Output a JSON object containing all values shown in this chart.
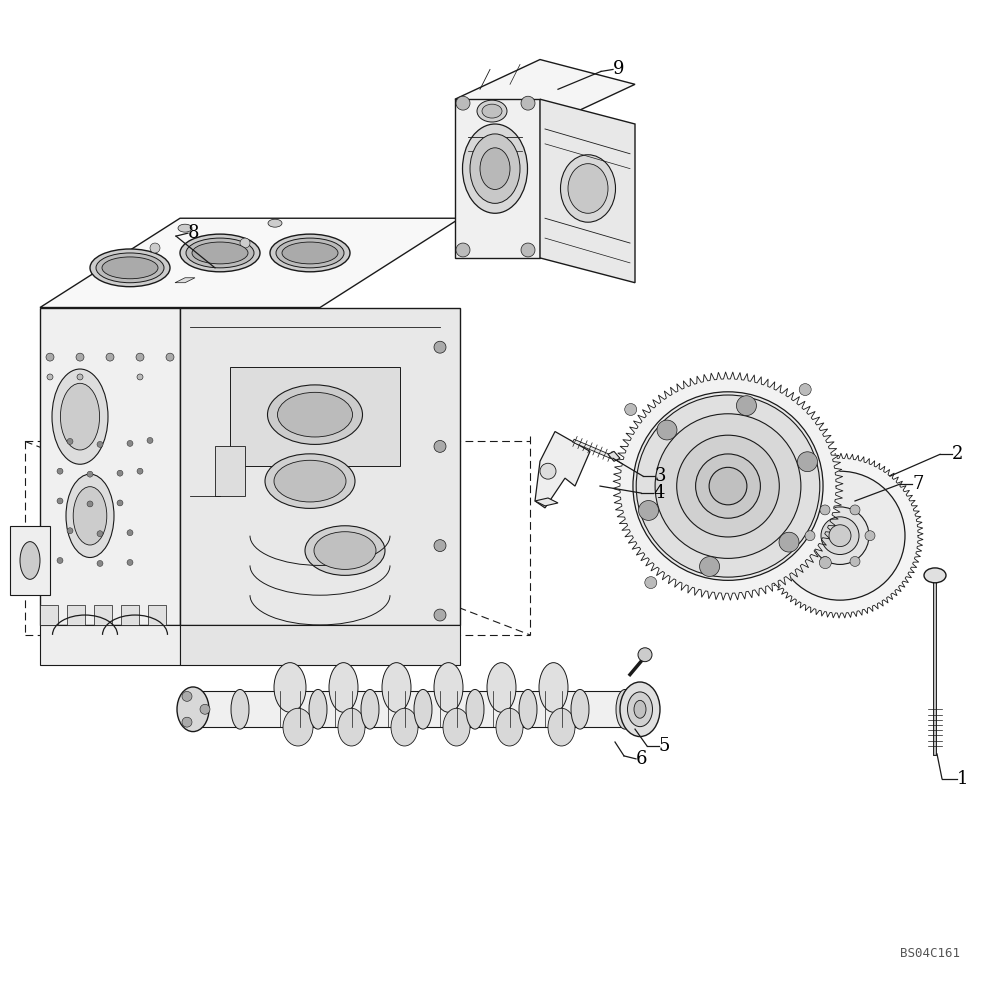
{
  "bg_color": "#ffffff",
  "lc": "#1a1a1a",
  "fig_width": 10.0,
  "fig_height": 9.92,
  "dpi": 100,
  "watermark": "BS04C161",
  "callouts": {
    "1": [
      0.955,
      0.21,
      0.93,
      0.235
    ],
    "2": [
      0.948,
      0.535,
      0.895,
      0.51
    ],
    "3": [
      0.65,
      0.505,
      0.618,
      0.51
    ],
    "4": [
      0.648,
      0.49,
      0.608,
      0.49
    ],
    "5": [
      0.66,
      0.235,
      0.633,
      0.248
    ],
    "6": [
      0.635,
      0.228,
      0.605,
      0.238
    ],
    "7": [
      0.91,
      0.505,
      0.862,
      0.508
    ],
    "8": [
      0.19,
      0.76,
      0.23,
      0.718
    ],
    "9": [
      0.61,
      0.925,
      0.56,
      0.905
    ]
  }
}
